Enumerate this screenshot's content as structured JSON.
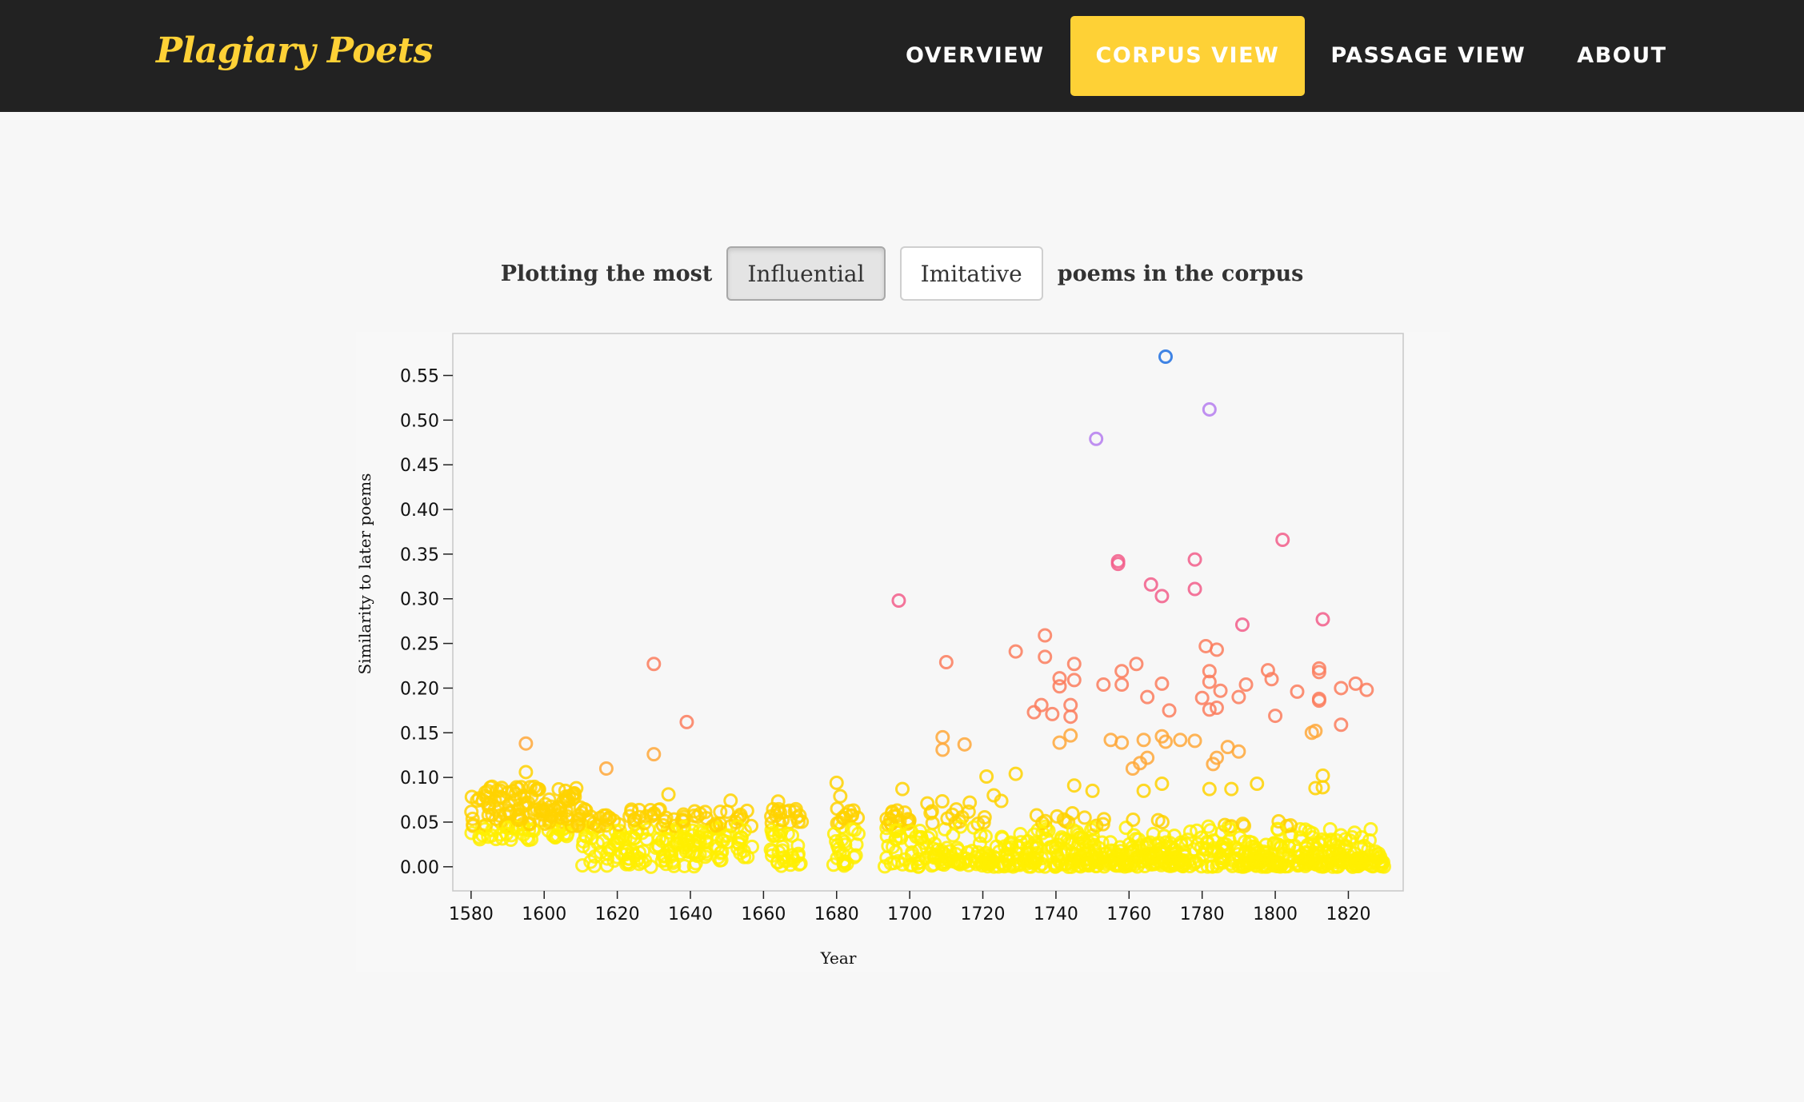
{
  "brand": "Plagiary Poets",
  "nav": {
    "items": [
      {
        "label": "Overview",
        "active": false
      },
      {
        "label": "Corpus View",
        "active": true
      },
      {
        "label": "Passage View",
        "active": false
      },
      {
        "label": "About",
        "active": false
      }
    ]
  },
  "controls": {
    "prefix": "Plotting the most",
    "options": [
      {
        "label": "Influential",
        "active": true
      },
      {
        "label": "Imitative",
        "active": false
      }
    ],
    "suffix": "poems in the corpus"
  },
  "colors": {
    "nav_bg": "#222222",
    "accent": "#fed136",
    "scale": [
      "#ffee00",
      "#ffd200",
      "#ffa83a",
      "#fb7d5d",
      "#f25d8a",
      "#b57cef",
      "#1f6fe0"
    ]
  },
  "chart_data": {
    "type": "scatter",
    "xlabel": "Year",
    "ylabel": "Similarity to later poems",
    "xlim": [
      1575,
      1835
    ],
    "ylim": [
      -0.027,
      0.597
    ],
    "xticks": [
      1580,
      1600,
      1620,
      1640,
      1660,
      1680,
      1700,
      1720,
      1740,
      1760,
      1780,
      1800,
      1820
    ],
    "yticks": [
      "0.00",
      "0.05",
      "0.10",
      "0.15",
      "0.20",
      "0.25",
      "0.30",
      "0.35",
      "0.40",
      "0.45",
      "0.50",
      "0.55"
    ],
    "grid": false,
    "points": [
      [
        1770,
        0.571
      ],
      [
        1782,
        0.512
      ],
      [
        1751,
        0.479
      ],
      [
        1802,
        0.366
      ],
      [
        1757,
        0.342
      ],
      [
        1757,
        0.339
      ],
      [
        1778,
        0.344
      ],
      [
        1766,
        0.316
      ],
      [
        1778,
        0.311
      ],
      [
        1769,
        0.303
      ],
      [
        1697,
        0.298
      ],
      [
        1791,
        0.271
      ],
      [
        1813,
        0.277
      ],
      [
        1737,
        0.259
      ],
      [
        1781,
        0.247
      ],
      [
        1784,
        0.243
      ],
      [
        1729,
        0.241
      ],
      [
        1737,
        0.235
      ],
      [
        1745,
        0.227
      ],
      [
        1630,
        0.227
      ],
      [
        1710,
        0.229
      ],
      [
        1762,
        0.227
      ],
      [
        1758,
        0.219
      ],
      [
        1782,
        0.219
      ],
      [
        1798,
        0.22
      ],
      [
        1812,
        0.222
      ],
      [
        1812,
        0.218
      ],
      [
        1741,
        0.211
      ],
      [
        1745,
        0.209
      ],
      [
        1799,
        0.21
      ],
      [
        1741,
        0.202
      ],
      [
        1753,
        0.204
      ],
      [
        1758,
        0.204
      ],
      [
        1769,
        0.205
      ],
      [
        1782,
        0.207
      ],
      [
        1785,
        0.197
      ],
      [
        1790,
        0.19
      ],
      [
        1792,
        0.204
      ],
      [
        1806,
        0.196
      ],
      [
        1818,
        0.2
      ],
      [
        1822,
        0.205
      ],
      [
        1825,
        0.198
      ],
      [
        1765,
        0.19
      ],
      [
        1780,
        0.189
      ],
      [
        1812,
        0.186
      ],
      [
        1812,
        0.188
      ],
      [
        1736,
        0.181
      ],
      [
        1744,
        0.181
      ],
      [
        1734,
        0.173
      ],
      [
        1739,
        0.171
      ],
      [
        1744,
        0.168
      ],
      [
        1771,
        0.175
      ],
      [
        1782,
        0.176
      ],
      [
        1784,
        0.178
      ],
      [
        1800,
        0.169
      ],
      [
        1639,
        0.162
      ],
      [
        1818,
        0.159
      ],
      [
        1810,
        0.15
      ],
      [
        1811,
        0.152
      ],
      [
        1709,
        0.145
      ],
      [
        1744,
        0.147
      ],
      [
        1755,
        0.142
      ],
      [
        1758,
        0.139
      ],
      [
        1709,
        0.131
      ],
      [
        1715,
        0.137
      ],
      [
        1741,
        0.139
      ],
      [
        1764,
        0.142
      ],
      [
        1769,
        0.146
      ],
      [
        1770,
        0.14
      ],
      [
        1774,
        0.142
      ],
      [
        1778,
        0.141
      ],
      [
        1787,
        0.134
      ],
      [
        1790,
        0.129
      ],
      [
        1630,
        0.126
      ],
      [
        1595,
        0.138
      ],
      [
        1765,
        0.122
      ],
      [
        1763,
        0.116
      ],
      [
        1784,
        0.122
      ],
      [
        1783,
        0.115
      ],
      [
        1761,
        0.11
      ],
      [
        1617,
        0.11
      ],
      [
        1595,
        0.106
      ],
      [
        1721,
        0.101
      ],
      [
        1729,
        0.104
      ],
      [
        1813,
        0.102
      ],
      [
        1811,
        0.088
      ],
      [
        1813,
        0.089
      ],
      [
        1680,
        0.094
      ],
      [
        1698,
        0.087
      ],
      [
        1745,
        0.091
      ],
      [
        1764,
        0.085
      ],
      [
        1769,
        0.093
      ],
      [
        1782,
        0.087
      ],
      [
        1788,
        0.087
      ],
      [
        1795,
        0.093
      ],
      [
        1750,
        0.085
      ],
      [
        1634,
        0.081
      ],
      [
        1664,
        0.073
      ],
      [
        1651,
        0.074
      ],
      [
        1681,
        0.079
      ],
      [
        1723,
        0.08
      ]
    ]
  }
}
